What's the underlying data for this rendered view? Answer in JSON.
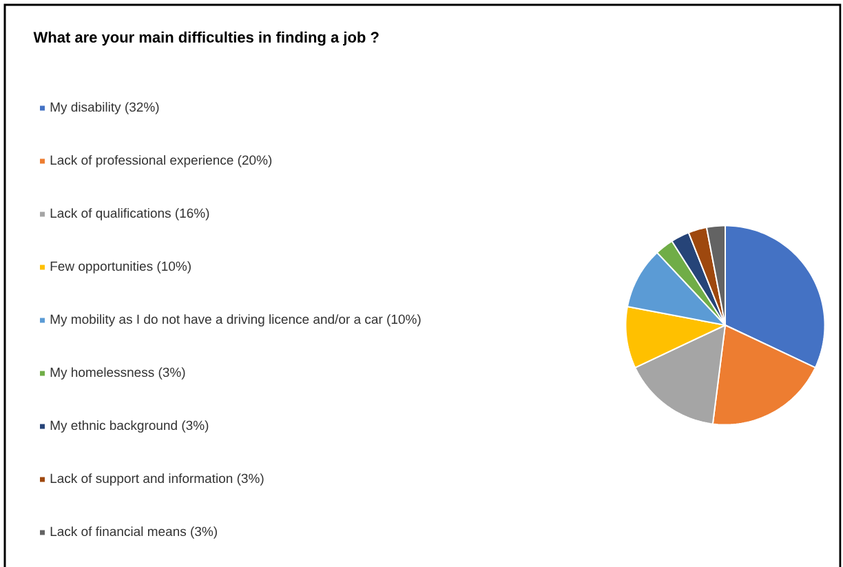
{
  "chart_data": {
    "type": "pie",
    "title": "What are your main difficulties in finding a job ?",
    "categories": [
      "My disability (32%)",
      "Lack of professional experience (20%)",
      "Lack of qualifications (16%)",
      "Few opportunities (10%)",
      "My mobility as I do not have a driving licence and/or a car (10%)",
      "My homelessness (3%)",
      "My ethnic background (3%)",
      "Lack of support and information (3%)",
      "Lack of financial means (3%)"
    ],
    "values": [
      32,
      20,
      16,
      10,
      10,
      3,
      3,
      3,
      3
    ],
    "colors": [
      "#4472c4",
      "#ed7d31",
      "#a5a5a5",
      "#ffc000",
      "#5b9bd5",
      "#70ad47",
      "#264478",
      "#9e480e",
      "#636363"
    ],
    "legend": "left"
  }
}
